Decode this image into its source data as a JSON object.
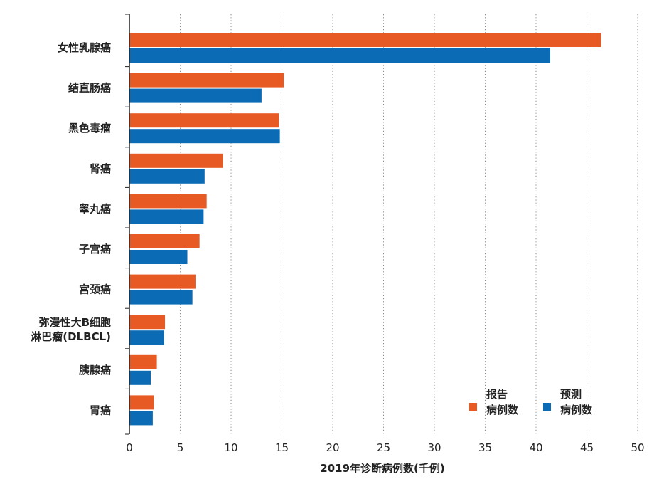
{
  "chart_data": {
    "type": "bar",
    "orientation": "horizontal",
    "categories": [
      [
        "女性乳腺癌"
      ],
      [
        "结直肠癌"
      ],
      [
        "黑色毒瘤"
      ],
      [
        "肾癌"
      ],
      [
        "睾丸癌"
      ],
      [
        "子宫癌"
      ],
      [
        "宫颈癌"
      ],
      [
        "弥漫性大B细胞",
        "淋巴瘤(DLBCL)"
      ],
      [
        "胰腺癌"
      ],
      [
        "胃癌"
      ]
    ],
    "series": [
      {
        "name": [
          "报告",
          "病例数"
        ],
        "color": "#e85a24",
        "values": [
          46.4,
          15.2,
          14.7,
          9.2,
          7.6,
          6.9,
          6.5,
          3.5,
          2.7,
          2.4
        ]
      },
      {
        "name": [
          "预测",
          "病例数"
        ],
        "color": "#0b6cb5",
        "values": [
          41.4,
          13.0,
          14.8,
          7.4,
          7.3,
          5.7,
          6.2,
          3.4,
          2.1,
          2.3
        ]
      }
    ],
    "xlim": [
      0,
      50
    ],
    "xticks": [
      0,
      5,
      10,
      15,
      20,
      25,
      30,
      35,
      40,
      45,
      50
    ],
    "xlabel": "2019年诊断病例数(千例)",
    "grid": "vertical dotted",
    "legend_position": "bottom-right"
  }
}
